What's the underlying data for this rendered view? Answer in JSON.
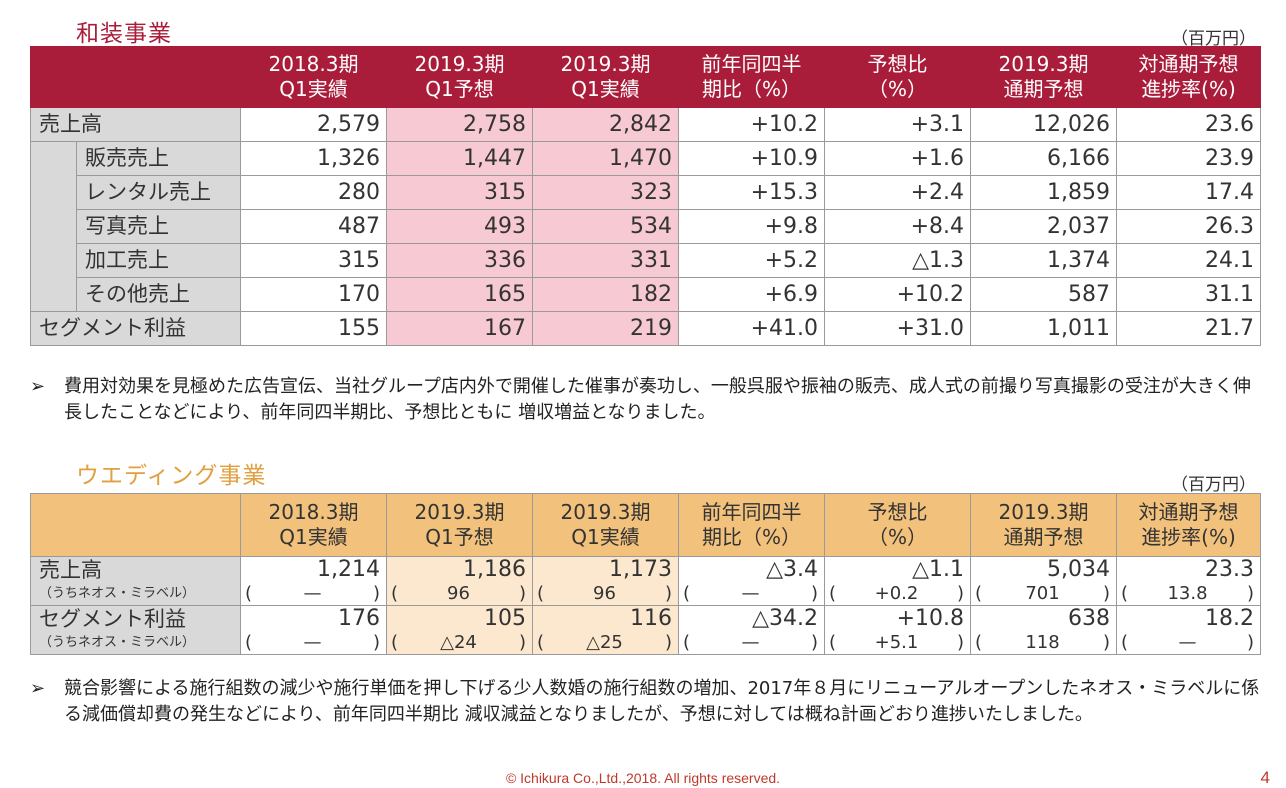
{
  "section1": {
    "title": "和装事業",
    "unit": "（百万円）",
    "headers": [
      "",
      "2018.3期\nQ1実績",
      "2019.3期\nQ1予想",
      "2019.3期\nQ1実績",
      "前年同四半\n期比（%）",
      "予想比\n（%）",
      "2019.3期\n通期予想",
      "対通期予想\n進捗率(%)"
    ],
    "rows": [
      {
        "label": "売上高",
        "values": [
          "2,579",
          "2,758",
          "2,842",
          "+10.2",
          "+3.1",
          "12,026",
          "23.6"
        ]
      },
      {
        "label": "販売売上",
        "values": [
          "1,326",
          "1,447",
          "1,470",
          "+10.9",
          "+1.6",
          "6,166",
          "23.9"
        ]
      },
      {
        "label": "レンタル売上",
        "values": [
          "280",
          "315",
          "323",
          "+15.3",
          "+2.4",
          "1,859",
          "17.4"
        ]
      },
      {
        "label": "写真売上",
        "values": [
          "487",
          "493",
          "534",
          "+9.8",
          "+8.4",
          "2,037",
          "26.3"
        ]
      },
      {
        "label": "加工売上",
        "values": [
          "315",
          "336",
          "331",
          "+5.2",
          "△1.3",
          "1,374",
          "24.1"
        ]
      },
      {
        "label": "その他売上",
        "values": [
          "170",
          "165",
          "182",
          "+6.9",
          "+10.2",
          "587",
          "31.1"
        ]
      },
      {
        "label": "セグメント利益",
        "values": [
          "155",
          "167",
          "219",
          "+41.0",
          "+31.0",
          "1,011",
          "21.7"
        ]
      }
    ],
    "note_marker": "➢",
    "note": "費用対効果を見極めた広告宣伝、当社グループ店内外で開催した催事が奏功し、一般呉服や振袖の販売、成人式の前撮り写真撮影の受注が大きく伸長したことなどにより、前年同四半期比、予想比ともに 増収増益となりました。"
  },
  "section2": {
    "title": "ウエディング事業",
    "unit": "（百万円）",
    "headers": [
      "",
      "2018.3期\nQ1実績",
      "2019.3期\nQ1予想",
      "2019.3期\nQ1実績",
      "前年同四半\n期比（%）",
      "予想比\n（%）",
      "2019.3期\n通期予想",
      "対通期予想\n進捗率(%)"
    ],
    "rows": [
      {
        "label": "売上高",
        "sublabel": "（うちネオス・ミラベル）",
        "values": [
          "1,214",
          "1,186",
          "1,173",
          "△3.4",
          "△1.1",
          "5,034",
          "23.3"
        ],
        "subvalues": [
          "—",
          "96",
          "96",
          "—",
          "+0.2",
          "701",
          "13.8"
        ]
      },
      {
        "label": "セグメント利益",
        "sublabel": "（うちネオス・ミラベル）",
        "values": [
          "176",
          "105",
          "116",
          "△34.2",
          "+10.8",
          "638",
          "18.2"
        ],
        "subvalues": [
          "—",
          "△24",
          "△25",
          "—",
          "+5.1",
          "118",
          "—"
        ]
      }
    ],
    "note_marker": "➢",
    "note": "競合影響による施行組数の減少や施行単価を押し下げる少人数婚の施行組数の増加、2017年８月にリニューアルオープンしたネオス・ミラベルに係る減価償却費の発生などにより、前年同四半期比 減収減益となりましたが、予想に対しては概ね計画どおり進捗いたしました。"
  },
  "footer": "© Ichikura Co.,Ltd.,2018. All rights reserved.",
  "page_number": "4",
  "colors": {
    "section1_accent": "#a91d3a",
    "section2_accent": "#f2c27d",
    "section1_highlight": "#f7cad3",
    "section2_highlight": "#fce8cf"
  }
}
